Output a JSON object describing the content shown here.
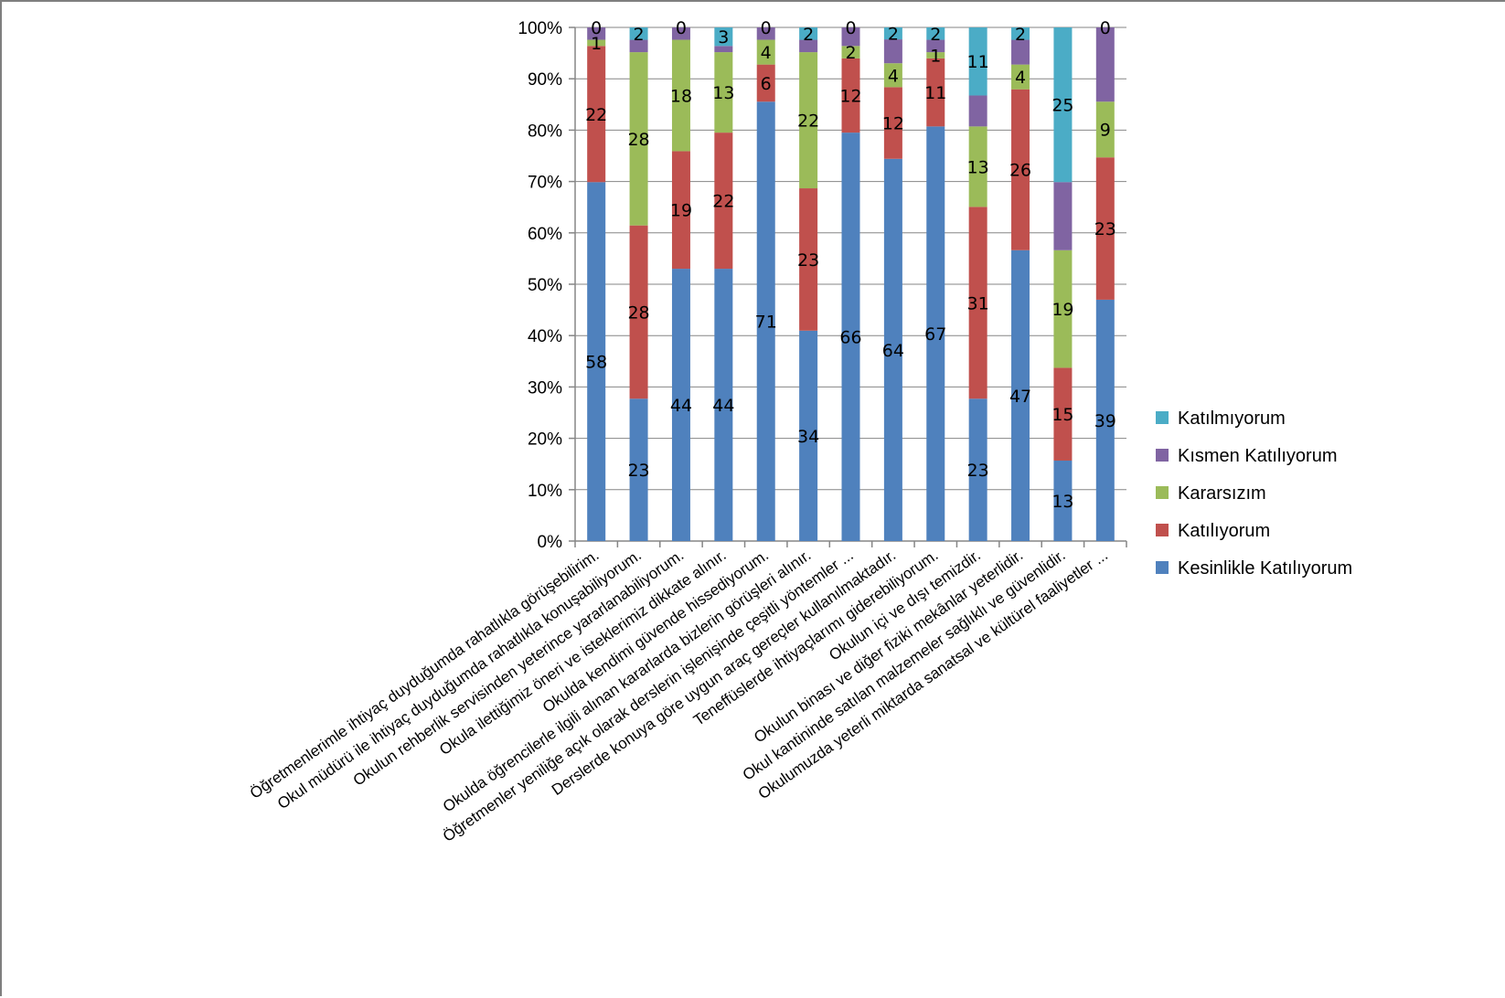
{
  "chart_data": {
    "type": "bar",
    "stacked": "percent",
    "title": "",
    "xlabel": "",
    "ylabel": "",
    "ylim": [
      0,
      100
    ],
    "y_ticks": [
      "0%",
      "10%",
      "20%",
      "30%",
      "40%",
      "50%",
      "60%",
      "70%",
      "80%",
      "90%",
      "100%"
    ],
    "legend_position": "right",
    "grid": true,
    "categories": [
      "Öğretmenlerimle ihtiyaç duyduğumda rahatlıkla görüşebilirim.",
      "Okul müdürü ile ihtiyaç duyduğumda rahatlıkla konuşabiliyorum.",
      "Okulun rehberlik servisinden yeterince yararlanabiliyorum.",
      "Okula ilettiğimiz öneri ve isteklerimiz dikkate alınır.",
      "Okulda kendimi güvende hissediyorum.",
      "Okulda öğrencilerle ilgili alınan kararlarda bizlerin görüşleri alınır.",
      "Öğretmenler yeniliğe açık olarak derslerin işlenişinde çeşitli yöntemler ...",
      "Derslerde konuya göre uygun araç gereçler kullanılmaktadır.",
      "Teneffüslerde ihtiyaçlarımı giderebiliyorum.",
      "Okulun içi ve dışı temizdir.",
      "Okulun binası ve diğer fiziki mekânlar yeterlidir.",
      "Okul kantininde satılan malzemeler sağlıklı ve güvenlidir.",
      "Okulumuzda yeterli miktarda sanatsal ve kültürel faaliyetler ..."
    ],
    "series": [
      {
        "name": "Kesinlikle Katılıyorum",
        "color": "#4f81bd",
        "values": [
          58,
          23,
          44,
          44,
          71,
          34,
          66,
          64,
          67,
          23,
          47,
          13,
          39
        ]
      },
      {
        "name": "Katılıyorum",
        "color": "#c0504d",
        "values": [
          22,
          28,
          19,
          22,
          6,
          23,
          12,
          12,
          11,
          31,
          26,
          15,
          23
        ]
      },
      {
        "name": "Kararsızım",
        "color": "#9bbb59",
        "values": [
          1,
          28,
          18,
          13,
          4,
          22,
          2,
          4,
          1,
          13,
          4,
          19,
          9
        ]
      },
      {
        "name": "Kısmen Katılıyorum",
        "color": "#8064a2",
        "values": [
          2,
          2,
          2,
          1,
          2,
          2,
          3,
          4,
          2,
          5,
          4,
          11,
          12
        ]
      },
      {
        "name": "Katılmıyorum",
        "color": "#4bacc6",
        "values": [
          0,
          2,
          0,
          3,
          0,
          2,
          0,
          2,
          2,
          11,
          2,
          25,
          0
        ]
      }
    ],
    "data_labels": {
      "Kesinlikle Katılıyorum": [
        "58",
        "23",
        "44",
        "44",
        "71",
        "34",
        "66",
        "64",
        "67",
        "23",
        "47",
        "13",
        "39"
      ],
      "Katılıyorum": [
        "22",
        "28",
        "19",
        "22",
        "6",
        "23",
        "12",
        "12",
        "11",
        "31",
        "26",
        "15",
        "23"
      ],
      "Kararsızım": [
        "1",
        "28",
        "18",
        "13",
        "4",
        "22",
        "2",
        "4",
        "1",
        "13",
        "4",
        "19",
        "9"
      ],
      "Katılmıyorum": [
        "0",
        "2",
        "0",
        "3",
        "0",
        "2",
        "0",
        "2",
        "2",
        "11",
        "2",
        "25",
        "0"
      ]
    }
  }
}
